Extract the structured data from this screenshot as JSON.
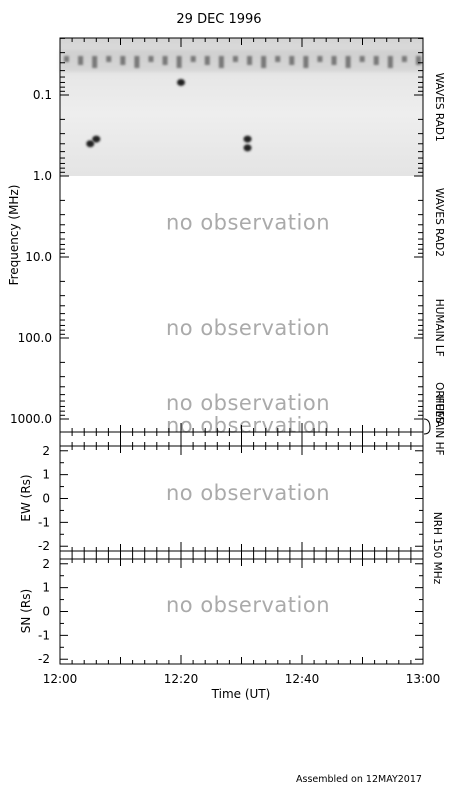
{
  "chart_data": {
    "type": "heatmap",
    "title": "29 DEC 1996",
    "xlabel": "Time (UT)",
    "x_tick_labels": [
      "12:00",
      "12:20",
      "12:40",
      "13:00"
    ],
    "x_range": [
      "12:00",
      "13:00"
    ],
    "panels": [
      {
        "id": "spectrogram",
        "ylabel": "Frequency (MHz)",
        "y_scale": "log",
        "y_inverted": true,
        "y_range": [
          0.02,
          1500
        ],
        "y_tick_labels": [
          "0.1",
          "1.0",
          "10.0",
          "100.0",
          "1000.0"
        ],
        "y_tick_values": [
          0.1,
          1,
          10,
          100,
          1000
        ],
        "instruments": [
          {
            "label": "WAVES RAD1",
            "freq_range_mhz": [
              0.02,
              1.0
            ],
            "observed": true
          },
          {
            "label": "WAVES RAD2",
            "freq_range_mhz": [
              1.0,
              14
            ],
            "observed": false,
            "message": "no observation"
          },
          {
            "label": "HUMAIN LF",
            "freq_range_mhz": [
              14,
              400
            ],
            "observed": false,
            "message": "no observation"
          },
          {
            "label": "ORFEES",
            "freq_range_mhz": [
              400,
              1000
            ],
            "observed": false,
            "message": "no observation"
          },
          {
            "label": "HUMAIN HF",
            "freq_range_mhz": [
              1000,
              1500
            ],
            "observed": false,
            "message": "no observation"
          }
        ],
        "bursts": [
          {
            "time": "12:06",
            "freq_mhz": 0.35
          },
          {
            "time": "12:05",
            "freq_mhz": 0.4
          },
          {
            "time": "12:31",
            "freq_mhz": 0.35
          },
          {
            "time": "12:31",
            "freq_mhz": 0.45
          },
          {
            "time": "12:20",
            "freq_mhz": 0.07
          }
        ]
      },
      {
        "id": "nrh_ew",
        "ylabel": "EW (Rs)",
        "y_range": [
          -2.2,
          2.2
        ],
        "y_tick_labels": [
          "2",
          "1",
          "0",
          "-1",
          "-2"
        ],
        "instrument": "NRH 150 MHz",
        "observed": false,
        "message": "no observation"
      },
      {
        "id": "nrh_sn",
        "ylabel": "SN (Rs)",
        "y_range": [
          -2.2,
          2.2
        ],
        "y_tick_labels": [
          "2",
          "1",
          "0",
          "-1",
          "-2"
        ],
        "instrument": "NRH 150 MHz",
        "observed": false,
        "message": "no observation"
      }
    ],
    "footer": "Assembled on 12MAY2017"
  }
}
